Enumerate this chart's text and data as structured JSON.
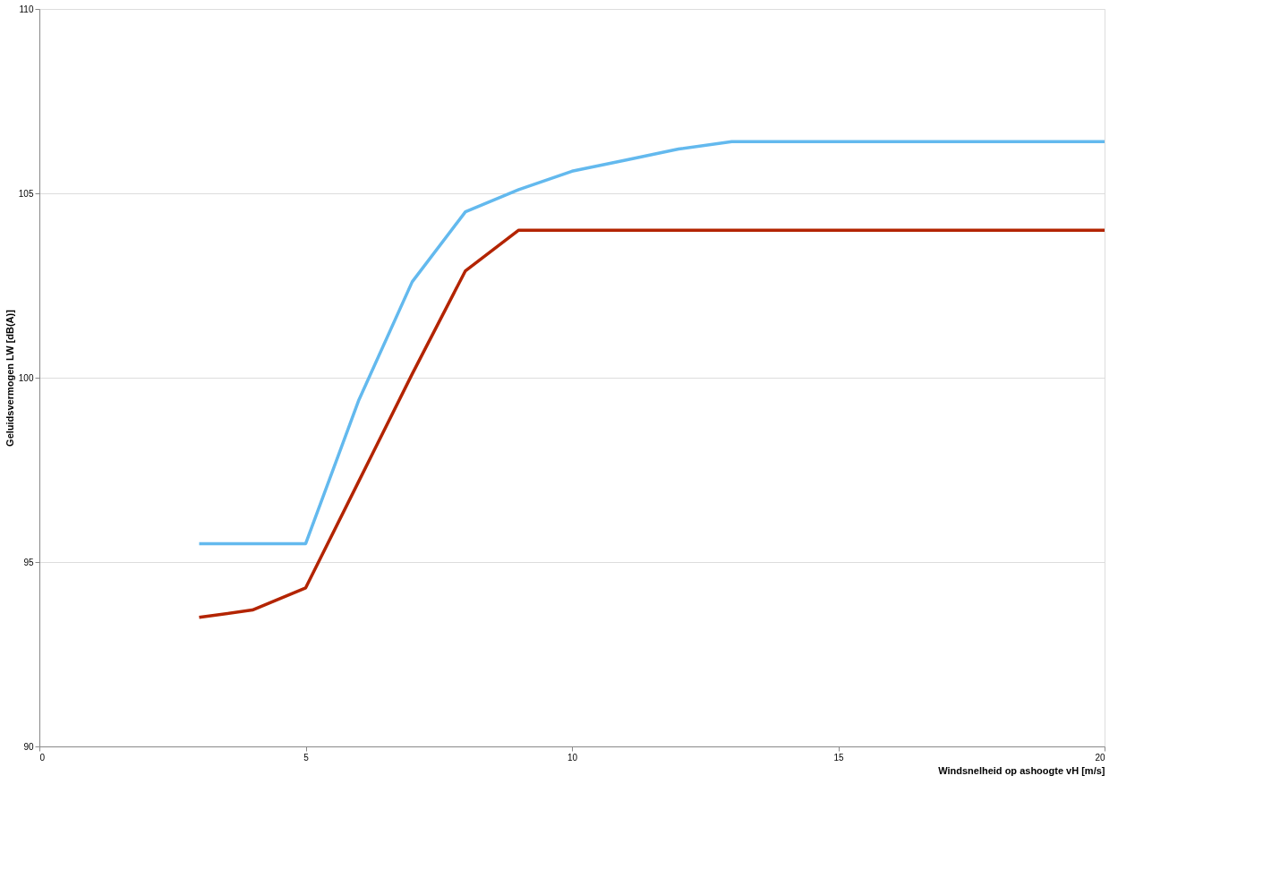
{
  "chart_data": {
    "type": "line",
    "xlabel": "Windsnelheid op ashoogte vH [m/s]",
    "ylabel": "Geluidsvermogen LW [dB(A)]",
    "xlim": [
      0,
      20
    ],
    "xticks": [
      0,
      5,
      10,
      15,
      20
    ],
    "ylim": [
      90,
      110
    ],
    "yticks": [
      90,
      95,
      100,
      105,
      110
    ],
    "grid": "y",
    "marker": "none",
    "line_style": "solid",
    "series": [
      {
        "color": "#b32400",
        "x": [
          3,
          4,
          5,
          6,
          7,
          8,
          9,
          10,
          11,
          12,
          13,
          14,
          15,
          16,
          17,
          18,
          19,
          20
        ],
        "values": [
          93.5,
          93.7,
          94.3,
          97.2,
          100.1,
          102.9,
          104.0,
          104.0,
          104.0,
          104.0,
          104.0,
          104.0,
          104.0,
          104.0,
          104.0,
          104.0,
          104.0,
          104.0
        ]
      },
      {
        "color": "#63b9ee",
        "x": [
          3,
          4,
          5,
          6,
          7,
          8,
          9,
          10,
          11,
          12,
          13,
          14,
          15,
          16,
          17,
          18,
          19,
          20
        ],
        "values": [
          95.5,
          95.5,
          95.5,
          99.4,
          102.6,
          104.5,
          105.1,
          105.6,
          105.9,
          106.2,
          106.4,
          106.4,
          106.4,
          106.4,
          106.4,
          106.4,
          106.4,
          106.4
        ]
      }
    ]
  }
}
